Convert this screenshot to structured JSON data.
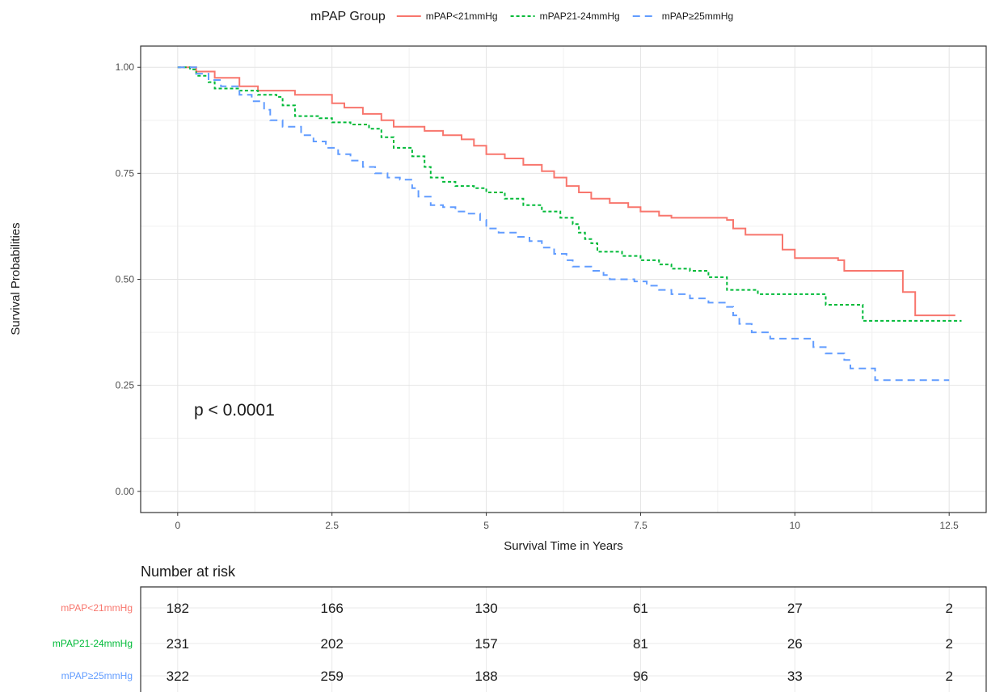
{
  "chart_data": {
    "type": "line",
    "subtype": "kaplan-meier-step",
    "title": "",
    "xlabel": "Survival Time in Years",
    "ylabel": "Survival Probabilities",
    "xlim": [
      -0.6,
      13.1
    ],
    "ylim": [
      -0.05,
      1.05
    ],
    "x_ticks": [
      0,
      2.5,
      5,
      7.5,
      10,
      12.5
    ],
    "x_tick_labels": [
      "0",
      "2.5",
      "5",
      "7.5",
      "10",
      "12.5"
    ],
    "y_ticks": [
      0,
      0.25,
      0.5,
      0.75,
      1.0
    ],
    "y_tick_labels": [
      "0.00",
      "0.25",
      "0.50",
      "0.75",
      "1.00"
    ],
    "grid": true,
    "legend": {
      "title": "mPAP Group",
      "position": "top"
    },
    "annotation": "p < 0.0001",
    "series": [
      {
        "name": "mPAP<21mmHg",
        "color": "#F8766D",
        "dash": "solid",
        "points": [
          [
            0,
            1.0
          ],
          [
            0.3,
            0.99
          ],
          [
            0.6,
            0.975
          ],
          [
            1.0,
            0.955
          ],
          [
            1.3,
            0.945
          ],
          [
            1.9,
            0.935
          ],
          [
            2.5,
            0.915
          ],
          [
            2.7,
            0.905
          ],
          [
            3.0,
            0.89
          ],
          [
            3.3,
            0.875
          ],
          [
            3.5,
            0.86
          ],
          [
            4.0,
            0.85
          ],
          [
            4.3,
            0.84
          ],
          [
            4.6,
            0.83
          ],
          [
            4.8,
            0.815
          ],
          [
            5.0,
            0.795
          ],
          [
            5.3,
            0.785
          ],
          [
            5.6,
            0.77
          ],
          [
            5.9,
            0.755
          ],
          [
            6.1,
            0.74
          ],
          [
            6.3,
            0.72
          ],
          [
            6.5,
            0.705
          ],
          [
            6.7,
            0.69
          ],
          [
            7.0,
            0.68
          ],
          [
            7.3,
            0.67
          ],
          [
            7.5,
            0.66
          ],
          [
            7.8,
            0.65
          ],
          [
            8.0,
            0.645
          ],
          [
            8.6,
            0.645
          ],
          [
            8.9,
            0.64
          ],
          [
            9.0,
            0.62
          ],
          [
            9.2,
            0.605
          ],
          [
            9.6,
            0.605
          ],
          [
            9.8,
            0.57
          ],
          [
            10.0,
            0.55
          ],
          [
            10.7,
            0.545
          ],
          [
            10.8,
            0.52
          ],
          [
            11.7,
            0.52
          ],
          [
            11.75,
            0.47
          ],
          [
            11.95,
            0.415
          ],
          [
            12.6,
            0.415
          ]
        ]
      },
      {
        "name": "mPAP21-24mmHg",
        "color": "#00BA38",
        "dash": "dotted",
        "points": [
          [
            0,
            1.0
          ],
          [
            0.2,
            0.995
          ],
          [
            0.3,
            0.98
          ],
          [
            0.5,
            0.965
          ],
          [
            0.6,
            0.95
          ],
          [
            1.0,
            0.945
          ],
          [
            1.3,
            0.935
          ],
          [
            1.6,
            0.93
          ],
          [
            1.7,
            0.91
          ],
          [
            1.9,
            0.885
          ],
          [
            2.3,
            0.88
          ],
          [
            2.5,
            0.87
          ],
          [
            2.8,
            0.865
          ],
          [
            3.1,
            0.855
          ],
          [
            3.3,
            0.835
          ],
          [
            3.5,
            0.81
          ],
          [
            3.8,
            0.79
          ],
          [
            4.0,
            0.765
          ],
          [
            4.1,
            0.74
          ],
          [
            4.3,
            0.73
          ],
          [
            4.5,
            0.72
          ],
          [
            4.8,
            0.715
          ],
          [
            5.0,
            0.705
          ],
          [
            5.3,
            0.69
          ],
          [
            5.6,
            0.675
          ],
          [
            5.9,
            0.66
          ],
          [
            6.2,
            0.645
          ],
          [
            6.4,
            0.63
          ],
          [
            6.5,
            0.61
          ],
          [
            6.6,
            0.595
          ],
          [
            6.7,
            0.585
          ],
          [
            6.8,
            0.565
          ],
          [
            7.2,
            0.555
          ],
          [
            7.5,
            0.545
          ],
          [
            7.8,
            0.535
          ],
          [
            8.0,
            0.525
          ],
          [
            8.3,
            0.52
          ],
          [
            8.6,
            0.505
          ],
          [
            8.9,
            0.49
          ],
          [
            8.9,
            0.475
          ],
          [
            9.4,
            0.465
          ],
          [
            10.4,
            0.465
          ],
          [
            10.5,
            0.44
          ],
          [
            11.0,
            0.44
          ],
          [
            11.1,
            0.402
          ],
          [
            12.7,
            0.402
          ]
        ]
      },
      {
        "name": "mPAP≥25mmHg",
        "color": "#619CFF",
        "dash": "dashed",
        "points": [
          [
            0,
            1.0
          ],
          [
            0.3,
            0.985
          ],
          [
            0.5,
            0.97
          ],
          [
            0.7,
            0.955
          ],
          [
            1.0,
            0.935
          ],
          [
            1.2,
            0.92
          ],
          [
            1.4,
            0.9
          ],
          [
            1.5,
            0.875
          ],
          [
            1.7,
            0.86
          ],
          [
            2.0,
            0.84
          ],
          [
            2.2,
            0.825
          ],
          [
            2.4,
            0.81
          ],
          [
            2.6,
            0.795
          ],
          [
            2.8,
            0.78
          ],
          [
            3.0,
            0.765
          ],
          [
            3.2,
            0.75
          ],
          [
            3.4,
            0.74
          ],
          [
            3.6,
            0.735
          ],
          [
            3.8,
            0.715
          ],
          [
            3.9,
            0.695
          ],
          [
            4.1,
            0.675
          ],
          [
            4.3,
            0.67
          ],
          [
            4.5,
            0.66
          ],
          [
            4.7,
            0.655
          ],
          [
            4.9,
            0.64
          ],
          [
            5.0,
            0.62
          ],
          [
            5.2,
            0.61
          ],
          [
            5.5,
            0.6
          ],
          [
            5.7,
            0.59
          ],
          [
            5.9,
            0.575
          ],
          [
            6.1,
            0.56
          ],
          [
            6.3,
            0.545
          ],
          [
            6.4,
            0.53
          ],
          [
            6.7,
            0.52
          ],
          [
            6.9,
            0.51
          ],
          [
            7.0,
            0.5
          ],
          [
            7.4,
            0.495
          ],
          [
            7.6,
            0.485
          ],
          [
            7.8,
            0.475
          ],
          [
            8.0,
            0.465
          ],
          [
            8.3,
            0.455
          ],
          [
            8.6,
            0.445
          ],
          [
            8.9,
            0.435
          ],
          [
            9.0,
            0.415
          ],
          [
            9.1,
            0.395
          ],
          [
            9.3,
            0.375
          ],
          [
            9.6,
            0.36
          ],
          [
            10.2,
            0.36
          ],
          [
            10.3,
            0.34
          ],
          [
            10.5,
            0.325
          ],
          [
            10.8,
            0.31
          ],
          [
            10.9,
            0.29
          ],
          [
            11.3,
            0.285
          ],
          [
            11.3,
            0.262
          ],
          [
            12.5,
            0.262
          ]
        ]
      }
    ],
    "risk_table": {
      "title": "Number at risk",
      "times": [
        0,
        2.5,
        5,
        7.5,
        10,
        12.5
      ],
      "rows": [
        {
          "name": "mPAP<21mmHg",
          "color": "#F8766D",
          "counts": [
            "182",
            "166",
            "130",
            "61",
            "27",
            "2"
          ]
        },
        {
          "name": "mPAP21-24mmHg",
          "color": "#00BA38",
          "counts": [
            "231",
            "202",
            "157",
            "81",
            "26",
            "2"
          ]
        },
        {
          "name": "mPAP≥25mmHg",
          "color": "#619CFF",
          "counts": [
            "322",
            "259",
            "188",
            "96",
            "33",
            "2"
          ]
        }
      ]
    }
  }
}
